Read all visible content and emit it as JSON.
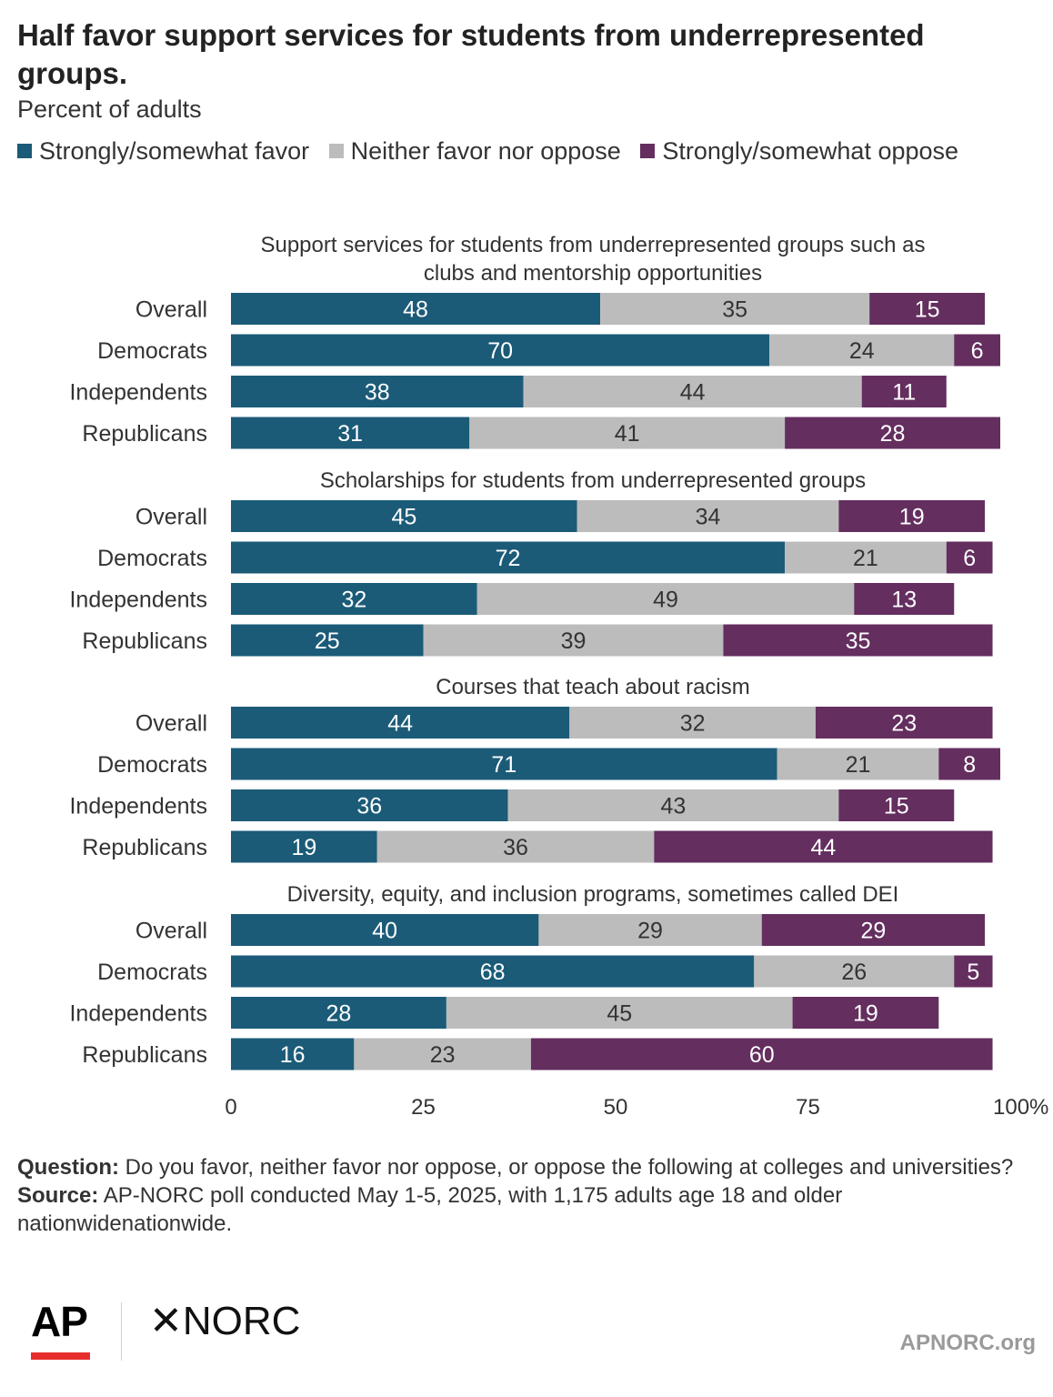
{
  "title": "Half favor support services for students from underrepresented groups.",
  "subtitle": "Percent of adults",
  "legend": [
    {
      "label": "Strongly/somewhat favor",
      "color": "#1b5b78"
    },
    {
      "label": "Neither favor nor oppose",
      "color": "#bcbcbc"
    },
    {
      "label": "Strongly/somewhat oppose",
      "color": "#642e5f"
    }
  ],
  "chart_data": {
    "type": "bar",
    "orientation": "horizontal",
    "stacked": true,
    "xlim": [
      0,
      100
    ],
    "x_ticks": [
      "0",
      "25",
      "50",
      "75",
      "100%"
    ],
    "series_names": [
      "Strongly/somewhat favor",
      "Neither favor nor oppose",
      "Strongly/somewhat oppose"
    ],
    "colors": [
      "#1b5b78",
      "#bcbcbc",
      "#642e5f"
    ],
    "panels": [
      {
        "heading": [
          "Support services for students from underrepresented groups such as",
          "clubs and mentorship opportunities"
        ],
        "rows": [
          {
            "label": "Overall",
            "values": [
              48,
              35,
              15
            ]
          },
          {
            "label": "Democrats",
            "values": [
              70,
              24,
              6
            ]
          },
          {
            "label": "Independents",
            "values": [
              38,
              44,
              11
            ]
          },
          {
            "label": "Republicans",
            "values": [
              31,
              41,
              28
            ]
          }
        ]
      },
      {
        "heading": [
          "Scholarships for students from underrepresented groups"
        ],
        "rows": [
          {
            "label": "Overall",
            "values": [
              45,
              34,
              19
            ]
          },
          {
            "label": "Democrats",
            "values": [
              72,
              21,
              6
            ]
          },
          {
            "label": "Independents",
            "values": [
              32,
              49,
              13
            ]
          },
          {
            "label": "Republicans",
            "values": [
              25,
              39,
              35
            ]
          }
        ]
      },
      {
        "heading": [
          "Courses that teach about racism"
        ],
        "rows": [
          {
            "label": "Overall",
            "values": [
              44,
              32,
              23
            ]
          },
          {
            "label": "Democrats",
            "values": [
              71,
              21,
              8
            ]
          },
          {
            "label": "Independents",
            "values": [
              36,
              43,
              15
            ]
          },
          {
            "label": "Republicans",
            "values": [
              19,
              36,
              44
            ]
          }
        ]
      },
      {
        "heading": [
          "Diversity, equity, and inclusion programs, sometimes called DEI"
        ],
        "rows": [
          {
            "label": "Overall",
            "values": [
              40,
              29,
              29
            ]
          },
          {
            "label": "Democrats",
            "values": [
              68,
              26,
              5
            ]
          },
          {
            "label": "Independents",
            "values": [
              28,
              45,
              19
            ]
          },
          {
            "label": "Republicans",
            "values": [
              16,
              23,
              60
            ]
          }
        ]
      }
    ]
  },
  "notes": {
    "question_label": "Question:",
    "question_text": " Do you favor, neither favor nor oppose, or oppose the following at colleges and universities?",
    "source_label": "Source:",
    "source_text": " AP-NORC poll conducted May 1-5, 2025, with 1,175 adults age 18 and older nationwidenationwide."
  },
  "branding": {
    "ap_logo": "AP",
    "norc_logo": "✕NORC",
    "site": "APNORC.org"
  }
}
